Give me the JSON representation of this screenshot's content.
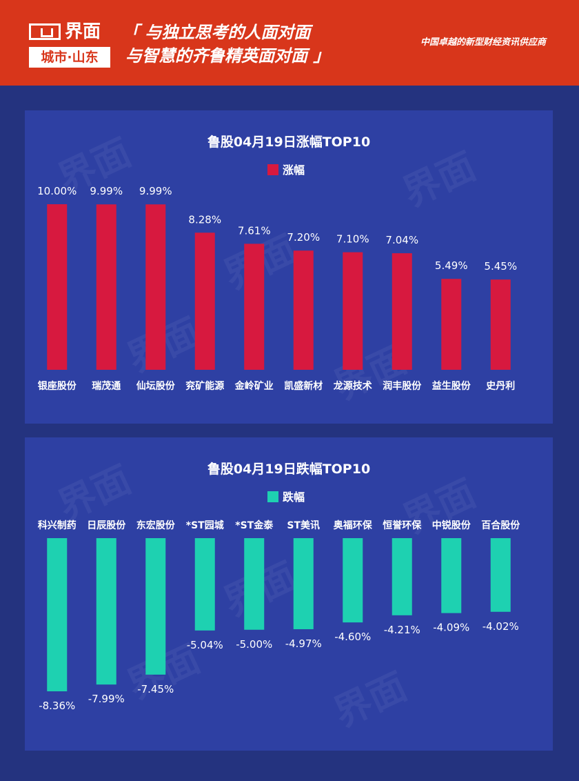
{
  "header": {
    "logo_name": "界面",
    "logo_sub": "城市·山东",
    "slogan_line1": "「 与独立思考的人面对面",
    "slogan_line2": "与智慧的齐鲁精英面对面 」",
    "tagline": "中国卓越的新型财经资讯供应商"
  },
  "colors": {
    "header_bg": "#d8361b",
    "page_bg": "#24337f",
    "panel_bg": "#2e40a3",
    "gain": "#d7193f",
    "loss": "#1ed1b1"
  },
  "chart_data": [
    {
      "type": "bar",
      "title": "鲁股04月19日涨幅TOP10",
      "legend": "涨幅",
      "legend_position": "top-center",
      "categories": [
        "银座股份",
        "瑞茂通",
        "仙坛股份",
        "兖矿能源",
        "金岭矿业",
        "凯盛新材",
        "龙源技术",
        "润丰股份",
        "益生股份",
        "史丹利"
      ],
      "values": [
        10.0,
        9.99,
        9.99,
        8.28,
        7.61,
        7.2,
        7.1,
        7.04,
        5.49,
        5.45
      ],
      "labels": [
        "10.00%",
        "9.99%",
        "9.99%",
        "8.28%",
        "7.61%",
        "7.20%",
        "7.10%",
        "7.04%",
        "5.49%",
        "5.45%"
      ],
      "ylim": [
        0,
        10
      ],
      "grid": false,
      "color": "#d7193f"
    },
    {
      "type": "bar",
      "title": "鲁股04月19日跌幅TOP10",
      "legend": "跌幅",
      "legend_position": "top-center",
      "categories": [
        "科兴制药",
        "日辰股份",
        "东宏股份",
        "*ST园城",
        "*ST金泰",
        "ST美讯",
        "奥福环保",
        "恒誉环保",
        "中锐股份",
        "百合股份"
      ],
      "values": [
        -8.36,
        -7.99,
        -7.45,
        -5.04,
        -5.0,
        -4.97,
        -4.6,
        -4.21,
        -4.09,
        -4.02
      ],
      "labels": [
        "-8.36%",
        "-7.99%",
        "-7.45%",
        "-5.04%",
        "-5.00%",
        "-4.97%",
        "-4.60%",
        "-4.21%",
        "-4.09%",
        "-4.02%"
      ],
      "ylim": [
        -8.36,
        0
      ],
      "grid": false,
      "color": "#1ed1b1"
    }
  ]
}
